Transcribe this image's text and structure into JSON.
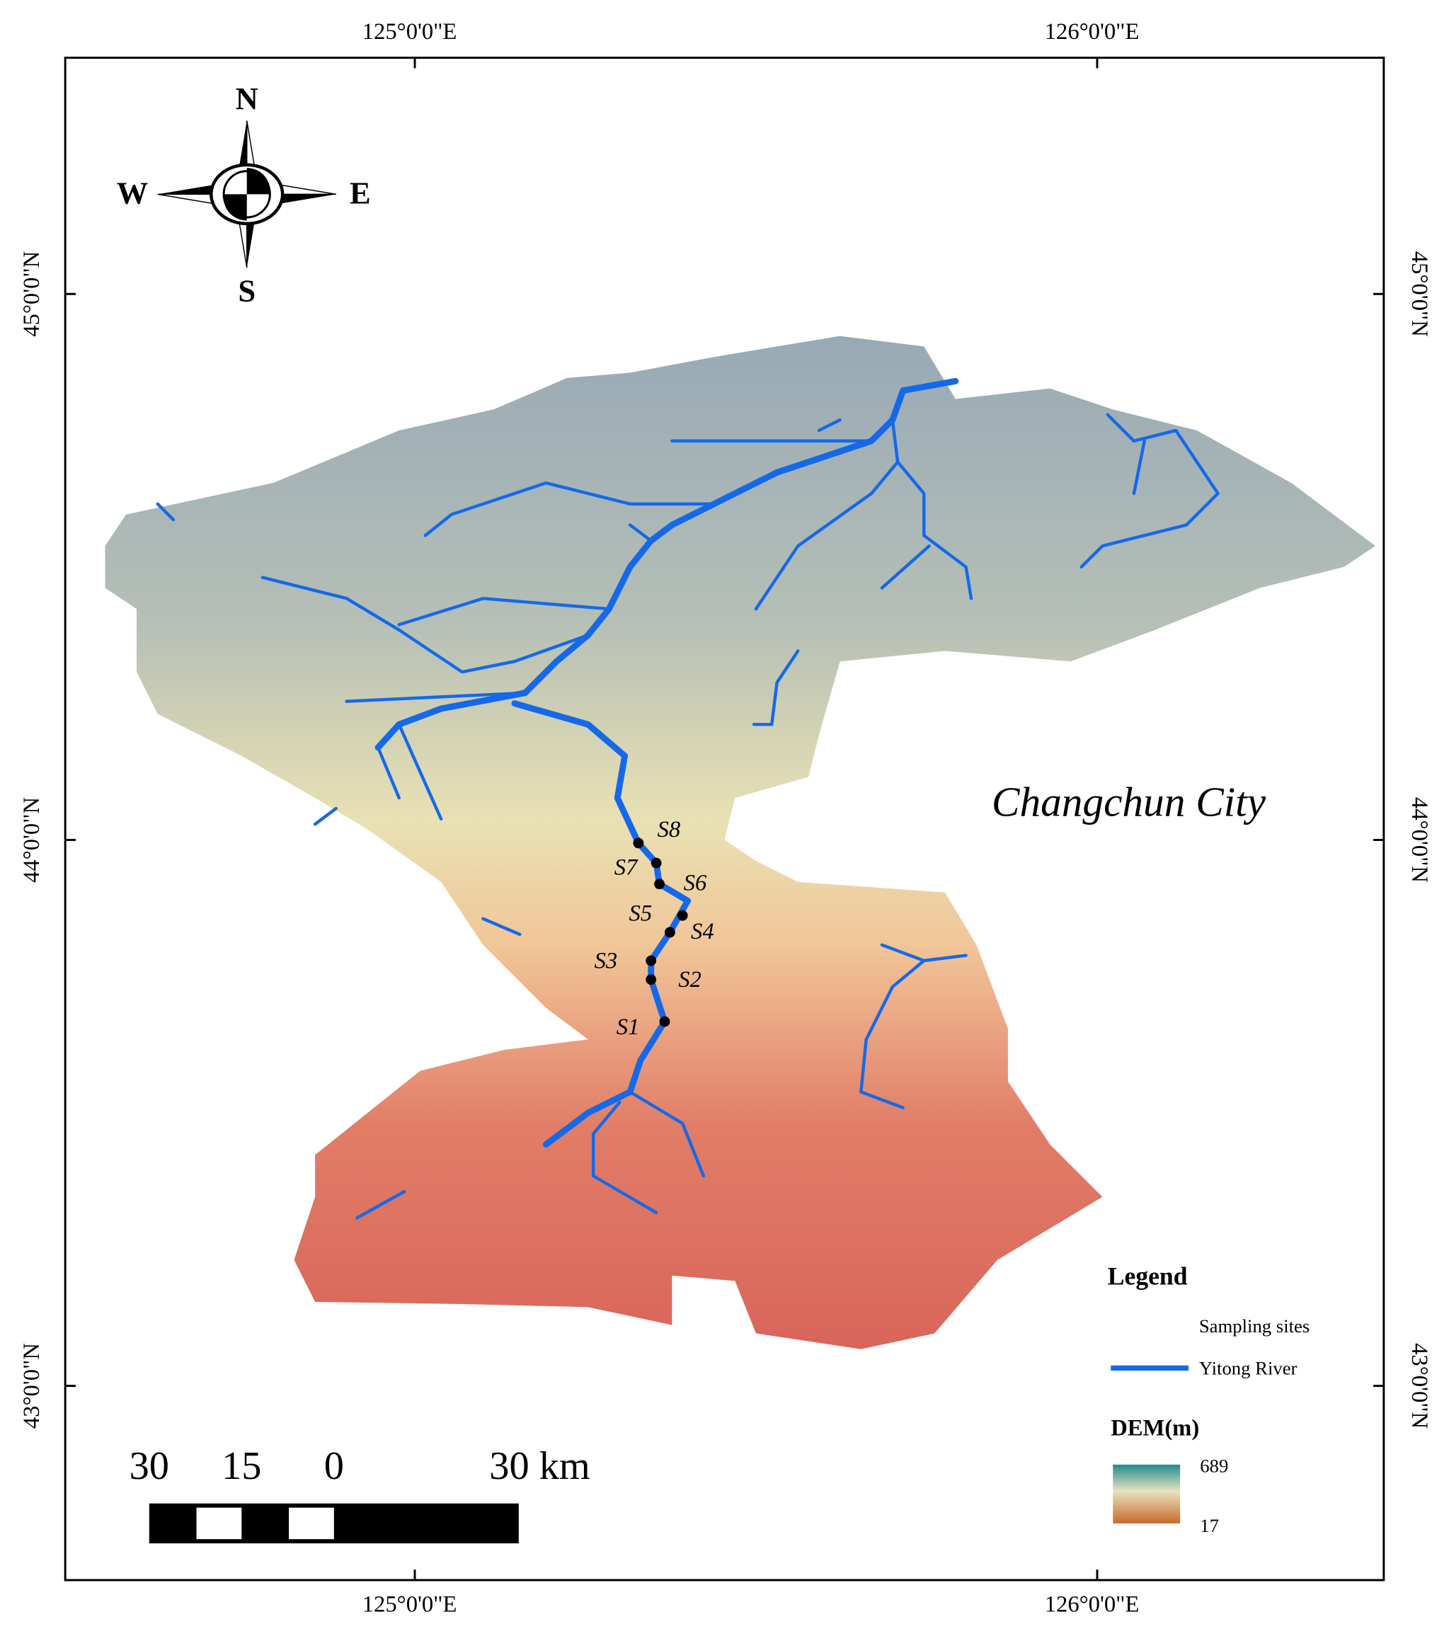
{
  "map": {
    "title": "Changchun City",
    "grid_labels": {
      "top": [
        "125°0'0\"E",
        "126°0'0\"E"
      ],
      "bottom": [
        "125°0'0\"E",
        "126°0'0\"E"
      ],
      "left": [
        "45°0'0\"N",
        "44°0'0\"N",
        "43°0'0\"N"
      ],
      "right": [
        "45°0'0\"N",
        "44°0'0\"N",
        "43°0'0\"N"
      ]
    },
    "compass": {
      "n": "N",
      "e": "E",
      "s": "S",
      "w": "W"
    },
    "sites": [
      "S1",
      "S2",
      "S3",
      "S4",
      "S5",
      "S6",
      "S7",
      "S8"
    ],
    "scale_bar": {
      "labels": [
        "30",
        "15",
        "0",
        "30 km"
      ]
    },
    "legend": {
      "title": "Legend",
      "items": [
        "Sampling sites",
        "Yitong River"
      ],
      "dem_title": "DEM(m)",
      "dem_max": 689,
      "dem_min": 17
    }
  }
}
